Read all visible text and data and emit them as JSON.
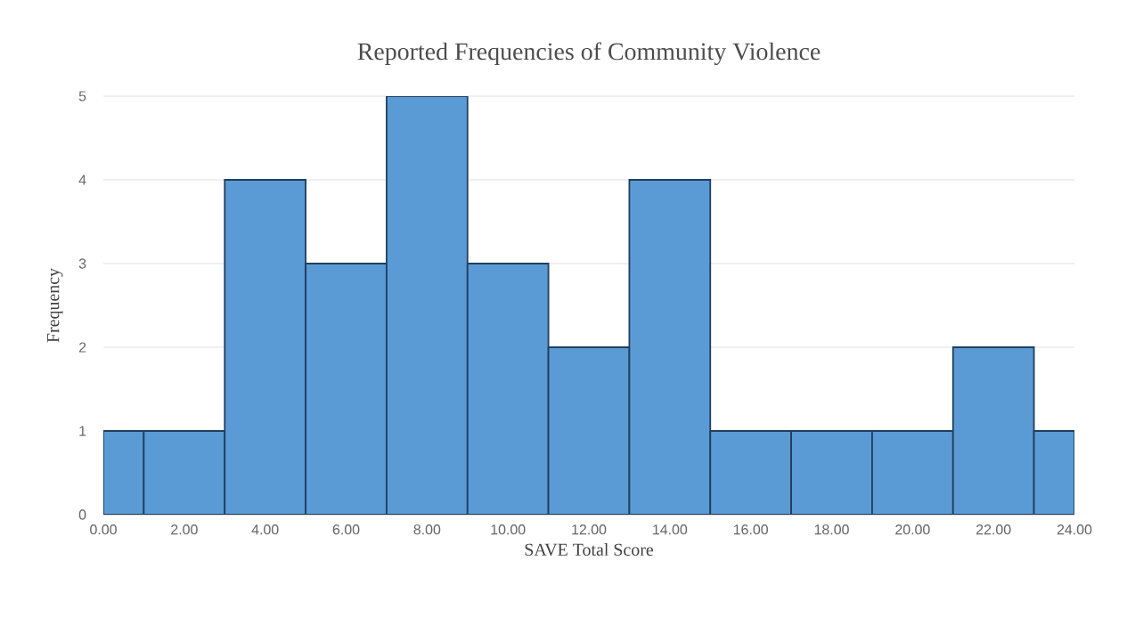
{
  "chart_data": {
    "type": "histogram",
    "title": "Reported Frequencies of Community Violence",
    "xlabel": "SAVE Total Score",
    "ylabel": "Frequency",
    "bins": [
      0,
      1,
      3,
      5,
      7,
      9,
      11,
      13,
      15,
      17,
      19,
      21,
      23,
      24
    ],
    "values": [
      1,
      1,
      4,
      3,
      5,
      3,
      2,
      4,
      1,
      1,
      1,
      2,
      1
    ],
    "color": "#5b9bd5",
    "xlim": [
      0,
      24
    ],
    "xticks": [
      {
        "value": 0,
        "label": "0.00"
      },
      {
        "value": 2,
        "label": "2.00"
      },
      {
        "value": 4,
        "label": "4.00"
      },
      {
        "value": 6,
        "label": "6.00"
      },
      {
        "value": 8,
        "label": "8.00"
      },
      {
        "value": 10,
        "label": "10.00"
      },
      {
        "value": 12,
        "label": "12.00"
      },
      {
        "value": 14,
        "label": "14.00"
      },
      {
        "value": 16,
        "label": "16.00"
      },
      {
        "value": 18,
        "label": "18.00"
      },
      {
        "value": 20,
        "label": "20.00"
      },
      {
        "value": 22,
        "label": "22.00"
      },
      {
        "value": 24,
        "label": "24.00"
      }
    ],
    "ylim": [
      0,
      5
    ],
    "yticks": [
      0,
      1,
      2,
      3,
      4,
      5
    ],
    "grid": "y"
  }
}
